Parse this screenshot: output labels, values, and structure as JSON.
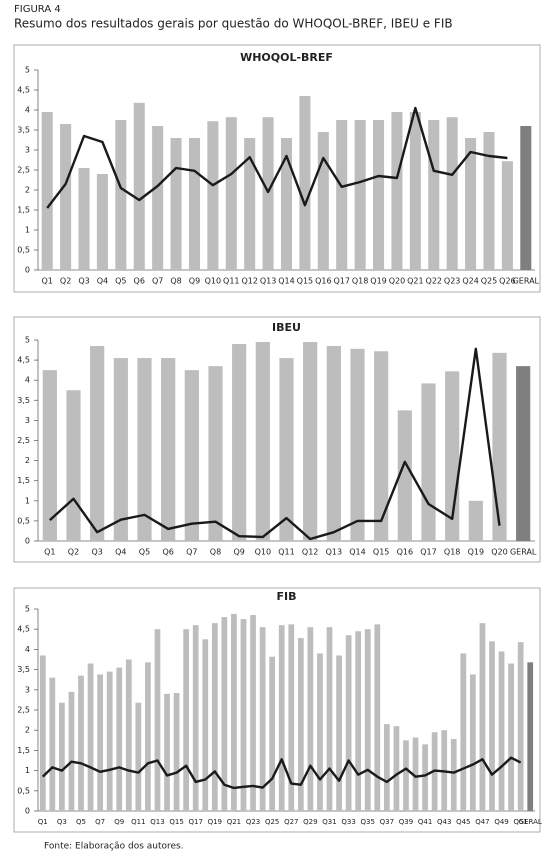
{
  "figure_label": "FIGURA 4",
  "caption": "Resumo dos resultados gerais por questão do WHOQOL-BREF, IBEU e FIB",
  "source": "Fonte: Elaboração dos autores.",
  "chart_data": [
    {
      "type": "bar_line",
      "title": "WHOQOL-BREF",
      "categories": [
        "Q1",
        "Q2",
        "Q3",
        "Q4",
        "Q5",
        "Q6",
        "Q7",
        "Q8",
        "Q9",
        "Q10",
        "Q11",
        "Q12",
        "Q13",
        "Q14",
        "Q15",
        "Q16",
        "Q17",
        "Q18",
        "Q19",
        "Q20",
        "Q21",
        "Q22",
        "Q23",
        "Q24",
        "Q25",
        "Q26",
        "GERAL"
      ],
      "series": [
        {
          "kind": "bar",
          "color": "#bdbdbd",
          "last_color": "#7f7f7f",
          "values": [
            3.95,
            3.65,
            2.55,
            2.4,
            3.75,
            4.18,
            3.6,
            3.3,
            3.3,
            3.72,
            3.82,
            3.3,
            3.82,
            3.3,
            4.35,
            3.45,
            3.75,
            3.75,
            3.75,
            3.95,
            3.95,
            3.75,
            3.82,
            3.3,
            3.45,
            2.72,
            3.6
          ]
        },
        {
          "kind": "line",
          "color": "#1a1a1a",
          "values": [
            1.55,
            2.15,
            3.35,
            3.2,
            2.05,
            1.75,
            2.1,
            2.55,
            2.48,
            2.12,
            2.4,
            2.82,
            1.95,
            2.85,
            1.62,
            2.8,
            2.08,
            2.2,
            2.35,
            2.3,
            4.05,
            2.48,
            2.38,
            2.95,
            2.85,
            2.8,
            null
          ]
        }
      ],
      "ylim": [
        0,
        5
      ],
      "yticks": [
        0,
        {
          "value": 0.5,
          "label": "0,5"
        },
        1,
        {
          "value": 1.5,
          "label": "1,5"
        },
        2,
        {
          "value": 2.5,
          "label": "2,5"
        },
        3,
        {
          "value": 3.5,
          "label": "3,5"
        },
        4,
        {
          "value": 4.5,
          "label": "4,5"
        },
        5
      ],
      "grid": false
    },
    {
      "type": "bar_line",
      "title": "IBEU",
      "categories": [
        "Q1",
        "Q2",
        "Q3",
        "Q4",
        "Q5",
        "Q6",
        "Q7",
        "Q8",
        "Q9",
        "Q10",
        "Q11",
        "Q12",
        "Q13",
        "Q14",
        "Q15",
        "Q16",
        "Q17",
        "Q18",
        "Q19",
        "Q20",
        "GERAL"
      ],
      "series": [
        {
          "kind": "bar",
          "color": "#bdbdbd",
          "last_color": "#7f7f7f",
          "values": [
            4.25,
            3.75,
            4.85,
            4.55,
            4.55,
            4.55,
            4.25,
            4.35,
            4.9,
            4.95,
            4.55,
            4.95,
            4.85,
            4.78,
            4.72,
            3.25,
            3.92,
            4.22,
            1.0,
            4.68,
            4.35
          ]
        },
        {
          "kind": "line",
          "color": "#1a1a1a",
          "values": [
            0.52,
            1.05,
            0.22,
            0.53,
            0.65,
            0.3,
            0.43,
            0.48,
            0.12,
            0.1,
            0.57,
            0.05,
            0.22,
            0.5,
            0.5,
            1.97,
            0.92,
            0.55,
            4.78,
            0.38,
            null
          ]
        }
      ],
      "ylim": [
        0,
        5
      ],
      "yticks": [
        0,
        {
          "value": 0.5,
          "label": "0,5"
        },
        1,
        {
          "value": 1.5,
          "label": "1,5"
        },
        2,
        {
          "value": 2.5,
          "label": "2,5"
        },
        3,
        {
          "value": 3.5,
          "label": "3,5"
        },
        4,
        {
          "value": 4.5,
          "label": "4,5"
        },
        5
      ],
      "grid": false
    },
    {
      "type": "bar_line",
      "title": "FIB",
      "categories": [
        "Q1",
        null,
        "Q3",
        null,
        "Q5",
        null,
        "Q7",
        null,
        "Q9",
        null,
        "Q11",
        null,
        "Q13",
        null,
        "Q15",
        null,
        "Q17",
        null,
        "Q19",
        null,
        "Q21",
        null,
        "Q23",
        null,
        "Q25",
        null,
        "Q27",
        null,
        "Q29",
        null,
        "Q31",
        null,
        "Q33",
        null,
        "Q35",
        null,
        "Q37",
        null,
        "Q39",
        null,
        "Q41",
        null,
        "Q43",
        null,
        "Q45",
        null,
        "Q47",
        null,
        "Q49",
        null,
        "Q51",
        "GERAL"
      ],
      "series": [
        {
          "kind": "bar",
          "color": "#bdbdbd",
          "last_color": "#7f7f7f",
          "values": [
            3.85,
            3.3,
            2.68,
            2.95,
            3.35,
            3.65,
            3.38,
            3.45,
            3.55,
            3.75,
            2.68,
            3.68,
            4.5,
            2.9,
            2.92,
            4.5,
            4.6,
            4.25,
            4.65,
            4.8,
            4.88,
            4.75,
            4.85,
            4.55,
            3.82,
            4.6,
            4.62,
            4.28,
            4.55,
            3.9,
            4.55,
            3.85,
            4.35,
            4.45,
            4.5,
            4.62,
            2.15,
            2.1,
            1.75,
            1.82,
            1.65,
            1.95,
            2.0,
            1.78,
            3.9,
            3.38,
            4.65,
            4.2,
            3.95,
            3.65,
            4.18,
            3.68
          ]
        },
        {
          "kind": "line",
          "color": "#1a1a1a",
          "values": [
            0.85,
            1.08,
            1.0,
            1.22,
            1.18,
            1.08,
            0.97,
            1.02,
            1.08,
            1.0,
            0.95,
            1.18,
            1.25,
            0.88,
            0.95,
            1.12,
            0.72,
            0.78,
            0.98,
            0.65,
            0.57,
            0.6,
            0.62,
            0.58,
            0.8,
            1.28,
            0.68,
            0.65,
            1.12,
            0.78,
            1.05,
            0.75,
            1.25,
            0.9,
            1.02,
            0.85,
            0.72,
            0.9,
            1.05,
            0.85,
            0.88,
            1.0,
            0.98,
            0.95,
            1.05,
            1.15,
            1.28,
            0.9,
            1.1,
            1.32,
            1.2,
            null
          ]
        }
      ],
      "ylim": [
        0,
        5
      ],
      "yticks": [
        0,
        {
          "value": 0.5,
          "label": "0,5"
        },
        1,
        {
          "value": 1.5,
          "label": "1,5"
        },
        2,
        {
          "value": 2.5,
          "label": "2,5"
        },
        3,
        {
          "value": 3.5,
          "label": "3,5"
        },
        4,
        {
          "value": 4.5,
          "label": "4,5"
        },
        5
      ],
      "grid": false
    }
  ]
}
